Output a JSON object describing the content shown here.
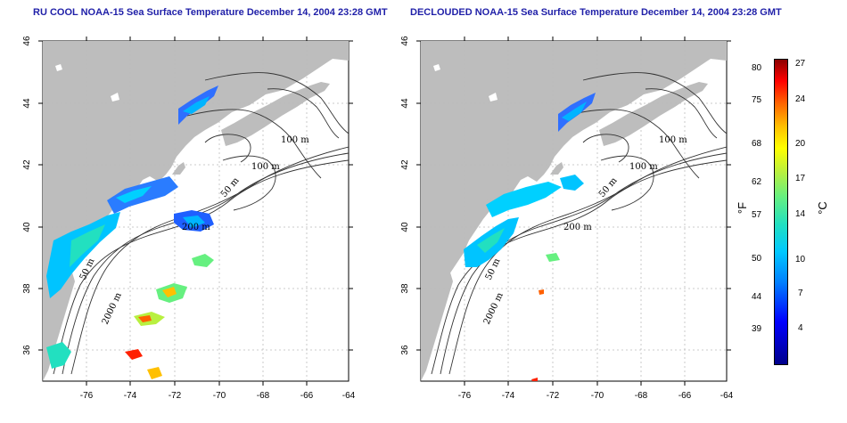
{
  "left_panel": {
    "title": "RU COOL NOAA-15 Sea Surface Temperature December 14, 2004 23:28 GMT"
  },
  "right_panel": {
    "title": "DECLOUDED NOAA-15 Sea Surface Temperature December 14, 2004 23:28 GMT"
  },
  "axes": {
    "x_ticks": [
      "-76",
      "-74",
      "-72",
      "-70",
      "-68",
      "-66",
      "-64"
    ],
    "y_ticks": [
      "46",
      "44",
      "42",
      "40",
      "38",
      "36"
    ],
    "xlim": [
      -77.2,
      -63.1
    ],
    "ylim": [
      35.0,
      46.0
    ]
  },
  "contour_labels": {
    "left": [
      "100 m",
      "100 m",
      "50 m",
      "200 m",
      "50 m",
      "2000 m"
    ],
    "right": [
      "100 m",
      "100 m",
      "50 m",
      "200 m",
      "50 m",
      "2000 m"
    ]
  },
  "colorbar": {
    "fahrenheit_ticks": [
      "80",
      "75",
      "68",
      "62",
      "57",
      "50",
      "44",
      "39"
    ],
    "celsius_ticks": [
      "27",
      "24",
      "20",
      "17",
      "14",
      "10",
      "7",
      "4"
    ],
    "fahrenheit_unit": "°F",
    "celsius_unit": "°C",
    "colors": [
      "#00008b",
      "#0000ff",
      "#0080ff",
      "#00c8ff",
      "#22e0c0",
      "#66f080",
      "#b8f040",
      "#ffff00",
      "#ffc000",
      "#ff6000",
      "#ff0000",
      "#8b0000"
    ]
  },
  "colors": {
    "land": "#bdbdbd",
    "title": "#1f1fa8",
    "grid": "#bbbbbb"
  }
}
